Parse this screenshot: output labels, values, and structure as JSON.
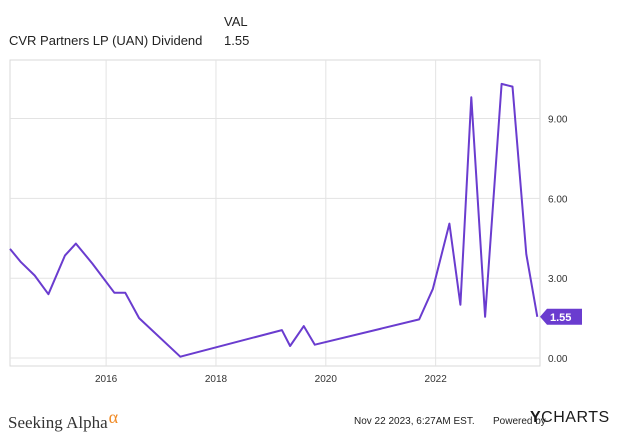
{
  "legend": {
    "header": "VAL",
    "series_name": "CVR Partners LP (UAN) Dividend",
    "series_value": "1.55"
  },
  "footer": {
    "brand": "Seeking Alpha",
    "brand_alpha": "α",
    "timestamp": "Nov 22 2023, 6:27AM EST.",
    "powered_by": "Powered by",
    "ycharts_y": "Y",
    "ycharts_rest": "CHARTS"
  },
  "chart_data": {
    "type": "line",
    "title": "CVR Partners LP (UAN) Dividend",
    "xlabel": "",
    "ylabel": "",
    "xlim": [
      2014.25,
      2023.9
    ],
    "ylim": [
      -0.3,
      11.2
    ],
    "y_ticks": [
      0,
      3,
      6,
      9
    ],
    "y_tick_labels": [
      "0.00",
      "3.00",
      "6.00",
      "9.00"
    ],
    "x_ticks": [
      2016,
      2018,
      2020,
      2022
    ],
    "x_tick_labels": [
      "2016",
      "2018",
      "2020",
      "2022"
    ],
    "grid": true,
    "line_color": "#6a3ccf",
    "end_label": "1.55",
    "series": [
      {
        "name": "CVR Partners LP (UAN) Dividend",
        "x": [
          2014.25,
          2014.45,
          2014.7,
          2014.95,
          2015.25,
          2015.45,
          2015.75,
          2016.15,
          2016.35,
          2016.6,
          2017.35,
          2019.2,
          2019.35,
          2019.6,
          2019.8,
          2021.7,
          2021.95,
          2022.25,
          2022.45,
          2022.65,
          2022.9,
          2023.2,
          2023.4,
          2023.65,
          2023.85
        ],
        "values": [
          4.1,
          3.6,
          3.1,
          2.4,
          3.85,
          4.3,
          3.55,
          2.45,
          2.45,
          1.5,
          0.05,
          1.05,
          0.45,
          1.2,
          0.5,
          1.45,
          2.6,
          5.05,
          2.0,
          9.8,
          1.55,
          10.3,
          10.2,
          3.9,
          1.55
        ]
      }
    ]
  }
}
